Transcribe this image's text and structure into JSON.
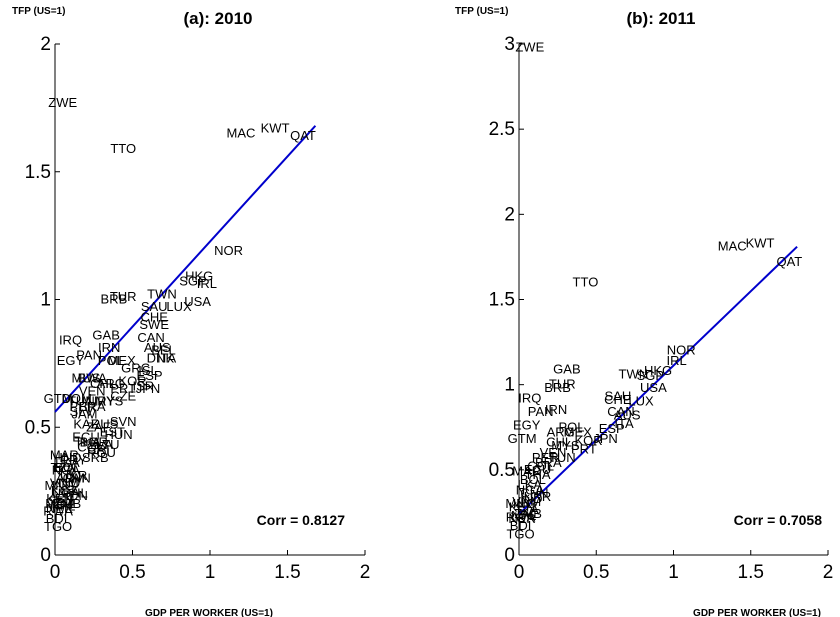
{
  "chart_data": [
    {
      "type": "scatter",
      "title": "(a): 2010",
      "xlabel": "GDP PER WORKER (US=1)",
      "ylabel": "TFP (US=1)",
      "xlim": [
        0,
        2
      ],
      "ylim": [
        0,
        2
      ],
      "xticks": [
        0,
        0.5,
        1,
        1.5,
        2
      ],
      "yticks": [
        0,
        0.5,
        1,
        1.5,
        2
      ],
      "xtick_labels": [
        "0",
        "0.5",
        "1",
        "1.5",
        "2"
      ],
      "ytick_labels": [
        "0",
        "0.5",
        "1",
        "1.5",
        "2"
      ],
      "annotation": "Corr = 0.8127",
      "fit_line": {
        "x": [
          0.0,
          1.68
        ],
        "y": [
          0.56,
          1.68
        ],
        "color": "#0000cc"
      },
      "points": [
        {
          "label": "ZWE",
          "x": 0.05,
          "y": 1.77
        },
        {
          "label": "TTO",
          "x": 0.44,
          "y": 1.59
        },
        {
          "label": "MAC",
          "x": 1.2,
          "y": 1.65
        },
        {
          "label": "KWT",
          "x": 1.42,
          "y": 1.67
        },
        {
          "label": "QAT",
          "x": 1.6,
          "y": 1.64
        },
        {
          "label": "NOR",
          "x": 1.12,
          "y": 1.19
        },
        {
          "label": "HKG",
          "x": 0.93,
          "y": 1.09
        },
        {
          "label": "SGP",
          "x": 0.89,
          "y": 1.07
        },
        {
          "label": "IRL",
          "x": 0.98,
          "y": 1.06
        },
        {
          "label": "TWN",
          "x": 0.69,
          "y": 1.02
        },
        {
          "label": "BRB",
          "x": 0.38,
          "y": 1.0
        },
        {
          "label": "TUR",
          "x": 0.44,
          "y": 1.01
        },
        {
          "label": "USA",
          "x": 0.92,
          "y": 0.99
        },
        {
          "label": "SAU",
          "x": 0.64,
          "y": 0.97
        },
        {
          "label": "LUX",
          "x": 0.8,
          "y": 0.97
        },
        {
          "label": "CHE",
          "x": 0.64,
          "y": 0.93
        },
        {
          "label": "SWE",
          "x": 0.64,
          "y": 0.9
        },
        {
          "label": "IRQ",
          "x": 0.1,
          "y": 0.84
        },
        {
          "label": "GAB",
          "x": 0.33,
          "y": 0.86
        },
        {
          "label": "CAN",
          "x": 0.62,
          "y": 0.85
        },
        {
          "label": "IRN",
          "x": 0.35,
          "y": 0.81
        },
        {
          "label": "PAN",
          "x": 0.22,
          "y": 0.78
        },
        {
          "label": "BEL",
          "x": 0.7,
          "y": 0.8
        },
        {
          "label": "AUS",
          "x": 0.66,
          "y": 0.81
        },
        {
          "label": "ITA",
          "x": 0.72,
          "y": 0.77
        },
        {
          "label": "DNK",
          "x": 0.68,
          "y": 0.77
        },
        {
          "label": "EGY",
          "x": 0.1,
          "y": 0.76
        },
        {
          "label": "POL",
          "x": 0.36,
          "y": 0.76
        },
        {
          "label": "MEX",
          "x": 0.43,
          "y": 0.76
        },
        {
          "label": "GRC",
          "x": 0.52,
          "y": 0.73
        },
        {
          "label": "ISL",
          "x": 0.6,
          "y": 0.72
        },
        {
          "label": "ESP",
          "x": 0.61,
          "y": 0.7
        },
        {
          "label": "MUS",
          "x": 0.2,
          "y": 0.69
        },
        {
          "label": "BWA",
          "x": 0.24,
          "y": 0.69
        },
        {
          "label": "ARG",
          "x": 0.36,
          "y": 0.67
        },
        {
          "label": "CHL",
          "x": 0.31,
          "y": 0.67
        },
        {
          "label": "KOR",
          "x": 0.5,
          "y": 0.68
        },
        {
          "label": "ISR",
          "x": 0.57,
          "y": 0.66
        },
        {
          "label": "JPN",
          "x": 0.6,
          "y": 0.65
        },
        {
          "label": "VEN",
          "x": 0.24,
          "y": 0.64
        },
        {
          "label": "PRT",
          "x": 0.44,
          "y": 0.65
        },
        {
          "label": "CZE",
          "x": 0.44,
          "y": 0.62
        },
        {
          "label": "GTM",
          "x": 0.02,
          "y": 0.61
        },
        {
          "label": "DOM",
          "x": 0.14,
          "y": 0.61
        },
        {
          "label": "TUN",
          "x": 0.17,
          "y": 0.6
        },
        {
          "label": "URY",
          "x": 0.3,
          "y": 0.6
        },
        {
          "label": "MYS",
          "x": 0.35,
          "y": 0.6
        },
        {
          "label": "PER",
          "x": 0.18,
          "y": 0.58
        },
        {
          "label": "SLV",
          "x": 0.17,
          "y": 0.56
        },
        {
          "label": "BRA",
          "x": 0.24,
          "y": 0.58
        },
        {
          "label": "JAM",
          "x": 0.19,
          "y": 0.55
        },
        {
          "label": "KAZ",
          "x": 0.2,
          "y": 0.51
        },
        {
          "label": "ZAF",
          "x": 0.28,
          "y": 0.5
        },
        {
          "label": "RUS",
          "x": 0.32,
          "y": 0.51
        },
        {
          "label": "SVN",
          "x": 0.44,
          "y": 0.52
        },
        {
          "label": "HUN",
          "x": 0.41,
          "y": 0.47
        },
        {
          "label": "EST",
          "x": 0.37,
          "y": 0.48
        },
        {
          "label": "ECU",
          "x": 0.2,
          "y": 0.46
        },
        {
          "label": "THA",
          "x": 0.21,
          "y": 0.44
        },
        {
          "label": "BGR",
          "x": 0.25,
          "y": 0.44
        },
        {
          "label": "LVA",
          "x": 0.3,
          "y": 0.43
        },
        {
          "label": "LTU",
          "x": 0.34,
          "y": 0.43
        },
        {
          "label": "COL",
          "x": 0.23,
          "y": 0.42
        },
        {
          "label": "CRI",
          "x": 0.28,
          "y": 0.41
        },
        {
          "label": "ROU",
          "x": 0.3,
          "y": 0.4
        },
        {
          "label": "MAR",
          "x": 0.06,
          "y": 0.39
        },
        {
          "label": "HND",
          "x": 0.08,
          "y": 0.38
        },
        {
          "label": "SRB",
          "x": 0.26,
          "y": 0.38
        },
        {
          "label": "LKA",
          "x": 0.08,
          "y": 0.36
        },
        {
          "label": "PRY",
          "x": 0.12,
          "y": 0.37
        },
        {
          "label": "BOL",
          "x": 0.08,
          "y": 0.34
        },
        {
          "label": "TZA",
          "x": 0.05,
          "y": 0.34
        },
        {
          "label": "NGA",
          "x": 0.07,
          "y": 0.33
        },
        {
          "label": "UKR",
          "x": 0.12,
          "y": 0.31
        },
        {
          "label": "ARM",
          "x": 0.1,
          "y": 0.3
        },
        {
          "label": "CHN",
          "x": 0.14,
          "y": 0.3
        },
        {
          "label": "IND",
          "x": 0.09,
          "y": 0.28
        },
        {
          "label": "VNM",
          "x": 0.06,
          "y": 0.28
        },
        {
          "label": "MNG",
          "x": 0.03,
          "y": 0.27
        },
        {
          "label": "KGZ",
          "x": 0.06,
          "y": 0.25
        },
        {
          "label": "UGA",
          "x": 0.07,
          "y": 0.24
        },
        {
          "label": "PHL",
          "x": 0.13,
          "y": 0.24
        },
        {
          "label": "IDN",
          "x": 0.14,
          "y": 0.23
        },
        {
          "label": "KEN",
          "x": 0.03,
          "y": 0.22
        },
        {
          "label": "SEN",
          "x": 0.04,
          "y": 0.21
        },
        {
          "label": "MOZ",
          "x": 0.03,
          "y": 0.2
        },
        {
          "label": "ZMB",
          "x": 0.08,
          "y": 0.2
        },
        {
          "label": "NPL",
          "x": 0.05,
          "y": 0.19
        },
        {
          "label": "RWA",
          "x": 0.02,
          "y": 0.17
        },
        {
          "label": "NER",
          "x": 0.03,
          "y": 0.18
        },
        {
          "label": "BDI",
          "x": 0.01,
          "y": 0.14
        },
        {
          "label": "TGO",
          "x": 0.02,
          "y": 0.11
        }
      ]
    },
    {
      "type": "scatter",
      "title": "(b): 2011",
      "xlabel": "GDP PER WORKER (US=1)",
      "ylabel": "TFP (US=1)",
      "xlim": [
        0,
        2
      ],
      "ylim": [
        0,
        3
      ],
      "xticks": [
        0,
        0.5,
        1,
        1.5,
        2
      ],
      "yticks": [
        0,
        0.5,
        1,
        1.5,
        2,
        2.5,
        3
      ],
      "xtick_labels": [
        "0",
        "0.5",
        "1",
        "1.5",
        "2"
      ],
      "ytick_labels": [
        "0",
        "0.5",
        "1",
        "1.5",
        "2",
        "2.5",
        "3"
      ],
      "annotation": "Corr = 0.7058",
      "fit_line": {
        "x": [
          0.0,
          1.8
        ],
        "y": [
          0.24,
          1.81
        ],
        "color": "#0000cc"
      },
      "points": [
        {
          "label": "ZWE",
          "x": 0.07,
          "y": 2.98
        },
        {
          "label": "TTO",
          "x": 0.43,
          "y": 1.6
        },
        {
          "label": "MAC",
          "x": 1.38,
          "y": 1.81
        },
        {
          "label": "KWT",
          "x": 1.56,
          "y": 1.83
        },
        {
          "label": "QAT",
          "x": 1.75,
          "y": 1.72
        },
        {
          "label": "NOR",
          "x": 1.05,
          "y": 1.2
        },
        {
          "label": "IRL",
          "x": 1.02,
          "y": 1.14
        },
        {
          "label": "HKG",
          "x": 0.9,
          "y": 1.08
        },
        {
          "label": "SGP",
          "x": 0.85,
          "y": 1.05
        },
        {
          "label": "TWN",
          "x": 0.74,
          "y": 1.06
        },
        {
          "label": "GAB",
          "x": 0.31,
          "y": 1.09
        },
        {
          "label": "TUR",
          "x": 0.28,
          "y": 1.0
        },
        {
          "label": "BRB",
          "x": 0.25,
          "y": 0.98
        },
        {
          "label": "USA",
          "x": 0.87,
          "y": 0.98
        },
        {
          "label": "SAU",
          "x": 0.64,
          "y": 0.93
        },
        {
          "label": "CHE",
          "x": 0.64,
          "y": 0.91
        },
        {
          "label": "LUX",
          "x": 0.79,
          "y": 0.9
        },
        {
          "label": "IRQ",
          "x": 0.07,
          "y": 0.92
        },
        {
          "label": "PAN",
          "x": 0.14,
          "y": 0.84
        },
        {
          "label": "IRN",
          "x": 0.24,
          "y": 0.85
        },
        {
          "label": "CAN",
          "x": 0.66,
          "y": 0.84
        },
        {
          "label": "AUS",
          "x": 0.7,
          "y": 0.82
        },
        {
          "label": "EGY",
          "x": 0.05,
          "y": 0.76
        },
        {
          "label": "POL",
          "x": 0.34,
          "y": 0.75
        },
        {
          "label": "ESP",
          "x": 0.6,
          "y": 0.74
        },
        {
          "label": "ITA",
          "x": 0.68,
          "y": 0.77
        },
        {
          "label": "ARG",
          "x": 0.27,
          "y": 0.72
        },
        {
          "label": "MEX",
          "x": 0.38,
          "y": 0.72
        },
        {
          "label": "JPN",
          "x": 0.56,
          "y": 0.68
        },
        {
          "label": "GTM",
          "x": 0.02,
          "y": 0.68
        },
        {
          "label": "KOR",
          "x": 0.45,
          "y": 0.67
        },
        {
          "label": "MYS",
          "x": 0.3,
          "y": 0.64
        },
        {
          "label": "CHL",
          "x": 0.26,
          "y": 0.66
        },
        {
          "label": "PRT",
          "x": 0.42,
          "y": 0.62
        },
        {
          "label": "TUN",
          "x": 0.28,
          "y": 0.57
        },
        {
          "label": "VEN",
          "x": 0.22,
          "y": 0.6
        },
        {
          "label": "PER",
          "x": 0.17,
          "y": 0.57
        },
        {
          "label": "BRA",
          "x": 0.19,
          "y": 0.54
        },
        {
          "label": "COL",
          "x": 0.14,
          "y": 0.52
        },
        {
          "label": "ECU",
          "x": 0.12,
          "y": 0.5
        },
        {
          "label": "MAR",
          "x": 0.05,
          "y": 0.49
        },
        {
          "label": "THA",
          "x": 0.12,
          "y": 0.47
        },
        {
          "label": "BOL",
          "x": 0.09,
          "y": 0.44
        },
        {
          "label": "LKA",
          "x": 0.07,
          "y": 0.41
        },
        {
          "label": "NGA",
          "x": 0.07,
          "y": 0.38
        },
        {
          "label": "CHN",
          "x": 0.1,
          "y": 0.36
        },
        {
          "label": "UKR",
          "x": 0.12,
          "y": 0.34
        },
        {
          "label": "IND",
          "x": 0.08,
          "y": 0.33
        },
        {
          "label": "VNM",
          "x": 0.05,
          "y": 0.31
        },
        {
          "label": "MNG",
          "x": 0.01,
          "y": 0.3
        },
        {
          "label": "KEN",
          "x": 0.02,
          "y": 0.28
        },
        {
          "label": "TZA",
          "x": 0.05,
          "y": 0.26
        },
        {
          "label": "ZMB",
          "x": 0.06,
          "y": 0.24
        },
        {
          "label": "NPL",
          "x": 0.03,
          "y": 0.23
        },
        {
          "label": "RWA",
          "x": 0.01,
          "y": 0.22
        },
        {
          "label": "NER",
          "x": 0.02,
          "y": 0.21
        },
        {
          "label": "BDI",
          "x": 0.01,
          "y": 0.17
        },
        {
          "label": "TGO",
          "x": 0.01,
          "y": 0.12
        }
      ]
    }
  ]
}
